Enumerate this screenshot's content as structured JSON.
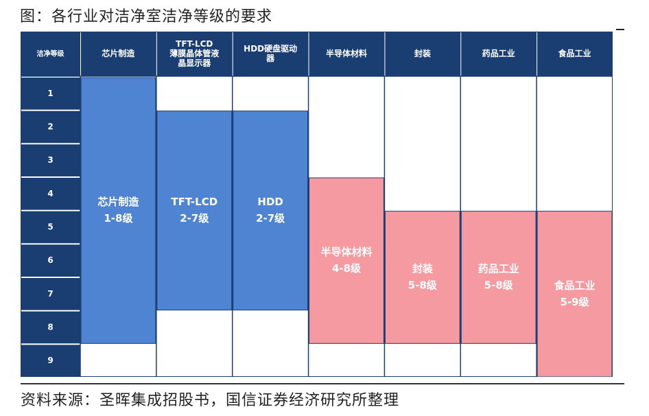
{
  "title": "图：各行业对洁净室洁净等级的要求",
  "source": "资料来源：圣晖集成招股书，国信证券经济研究所整理",
  "colors": {
    "header_bg": "#1a3d72",
    "level_bg": "#1a3d72",
    "blue_bar": "#4f84d2",
    "pink_bar": "#f49aa0",
    "header_text": "#ffffff",
    "bar_text": "#ffffff"
  },
  "chart_data": {
    "type": "table",
    "row_header": "洁净等级",
    "levels": [
      "1",
      "2",
      "3",
      "4",
      "5",
      "6",
      "7",
      "8",
      "9"
    ],
    "columns": [
      {
        "header": [
          "芯片制造"
        ],
        "label": [
          "芯片制造",
          "1-8级"
        ],
        "min": 1,
        "max": 8,
        "color": "blue"
      },
      {
        "header": [
          "TFT-LCD",
          "薄膜晶体管液",
          "晶显示器"
        ],
        "label": [
          "TFT-LCD",
          "2-7级"
        ],
        "min": 2,
        "max": 7,
        "color": "blue"
      },
      {
        "header": [
          "HDD硬盘驱动",
          "器"
        ],
        "label": [
          "HDD",
          "2-7级"
        ],
        "min": 2,
        "max": 7,
        "color": "blue"
      },
      {
        "header": [
          "半导体材料"
        ],
        "label": [
          "半导体材料",
          "4-8级"
        ],
        "min": 4,
        "max": 8,
        "color": "pink"
      },
      {
        "header": [
          "封装"
        ],
        "label": [
          "封装",
          "5-8级"
        ],
        "min": 5,
        "max": 8,
        "color": "pink"
      },
      {
        "header": [
          "药品工业"
        ],
        "label": [
          "药品工业",
          "5-8级"
        ],
        "min": 5,
        "max": 8,
        "color": "pink"
      },
      {
        "header": [
          "食品工业"
        ],
        "label": [
          "食品工业",
          "5-9级"
        ],
        "min": 5,
        "max": 9,
        "color": "pink"
      }
    ]
  }
}
